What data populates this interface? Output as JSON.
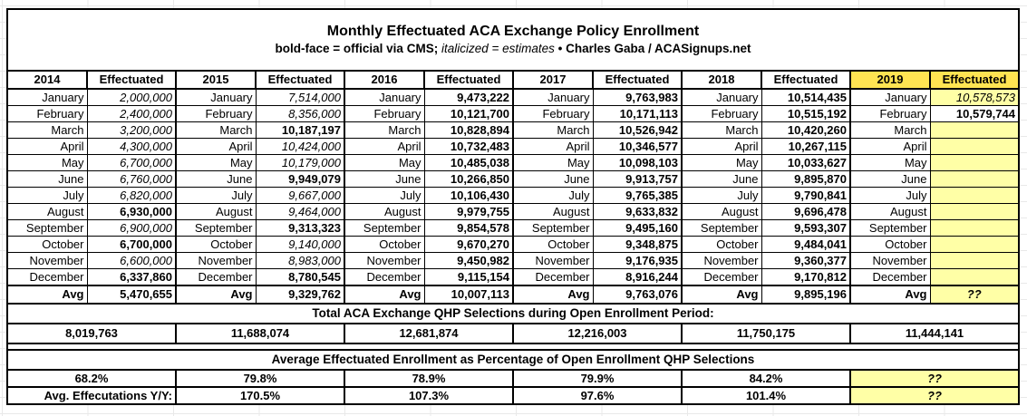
{
  "title": "Monthly Effectuated ACA Exchange Policy Enrollment",
  "subtitle": {
    "bold_part": "bold-face = official via CMS;",
    "italic_part": "italicized = estimates",
    "separator": "•",
    "credit_part": "Charles Gaba / ACASignups.net"
  },
  "colors": {
    "header_yellow": "#ffe452",
    "cell_yellow": "#ffffa6",
    "border_black": "#000000"
  },
  "effectuated_label": "Effectuated",
  "avg_label": "Avg",
  "months": [
    "January",
    "February",
    "March",
    "April",
    "May",
    "June",
    "July",
    "August",
    "September",
    "October",
    "November",
    "December"
  ],
  "years": [
    {
      "year": "2014",
      "highlight": false,
      "values": [
        "2,000,000",
        "2,400,000",
        "3,200,000",
        "4,300,000",
        "6,700,000",
        "6,760,000",
        "6,820,000",
        "6,930,000",
        "6,900,000",
        "6,700,000",
        "6,600,000",
        "6,337,860"
      ],
      "styles": [
        "est",
        "est",
        "est",
        "est",
        "est",
        "est",
        "est",
        "off",
        "est",
        "off",
        "est",
        "off"
      ],
      "avg": "5,470,655",
      "avg_style": "off"
    },
    {
      "year": "2015",
      "highlight": false,
      "values": [
        "7,514,000",
        "8,356,000",
        "10,187,197",
        "10,424,000",
        "10,179,000",
        "9,949,079",
        "9,667,000",
        "9,464,000",
        "9,313,323",
        "9,140,000",
        "8,983,000",
        "8,780,545"
      ],
      "styles": [
        "est",
        "est",
        "off",
        "est",
        "est",
        "off",
        "est",
        "est",
        "off",
        "est",
        "est",
        "off"
      ],
      "avg": "9,329,762",
      "avg_style": "off"
    },
    {
      "year": "2016",
      "highlight": false,
      "values": [
        "9,473,222",
        "10,121,700",
        "10,828,894",
        "10,732,483",
        "10,485,038",
        "10,266,850",
        "10,106,430",
        "9,979,755",
        "9,854,578",
        "9,670,270",
        "9,450,982",
        "9,115,154"
      ],
      "styles": [
        "off",
        "off",
        "off",
        "off",
        "off",
        "off",
        "off",
        "off",
        "off",
        "off",
        "off",
        "off"
      ],
      "avg": "10,007,113",
      "avg_style": "off"
    },
    {
      "year": "2017",
      "highlight": false,
      "values": [
        "9,763,983",
        "10,171,113",
        "10,526,942",
        "10,346,577",
        "10,098,103",
        "9,913,757",
        "9,765,385",
        "9,633,832",
        "9,495,160",
        "9,348,875",
        "9,176,935",
        "8,916,244"
      ],
      "styles": [
        "off",
        "off",
        "off",
        "off",
        "off",
        "off",
        "off",
        "off",
        "off",
        "off",
        "off",
        "off"
      ],
      "avg": "9,763,076",
      "avg_style": "off"
    },
    {
      "year": "2018",
      "highlight": false,
      "values": [
        "10,514,435",
        "10,515,192",
        "10,420,260",
        "10,267,115",
        "10,033,627",
        "9,895,870",
        "9,790,841",
        "9,696,478",
        "9,593,307",
        "9,484,041",
        "9,360,377",
        "9,170,812"
      ],
      "styles": [
        "off",
        "off",
        "off",
        "off",
        "off",
        "off",
        "off",
        "off",
        "off",
        "off",
        "off",
        "off"
      ],
      "avg": "9,895,196",
      "avg_style": "off"
    },
    {
      "year": "2019",
      "highlight": true,
      "values": [
        "10,578,573",
        "10,579,744",
        "",
        "",
        "",
        "",
        "",
        "",
        "",
        "",
        "",
        ""
      ],
      "styles": [
        "est",
        "off",
        "empty",
        "empty",
        "empty",
        "empty",
        "empty",
        "empty",
        "empty",
        "empty",
        "empty",
        "empty"
      ],
      "avg": "??",
      "avg_style": "unknown"
    }
  ],
  "qhp_section": {
    "header": "Total ACA Exchange QHP Selections during Open Enrollment Period:",
    "values": [
      "8,019,763",
      "11,688,074",
      "12,681,874",
      "12,216,003",
      "11,750,175",
      "11,444,141"
    ]
  },
  "pct_section": {
    "header": "Average Effectuated Enrollment as Percentage of Open Enrollment QHP Selections",
    "values": [
      "68.2%",
      "79.8%",
      "78.9%",
      "79.9%",
      "84.2%",
      "??"
    ]
  },
  "yy_section": {
    "label": "Avg. Effecutations Y/Y:",
    "values": [
      "170.5%",
      "107.3%",
      "97.6%",
      "101.4%",
      "??"
    ]
  }
}
